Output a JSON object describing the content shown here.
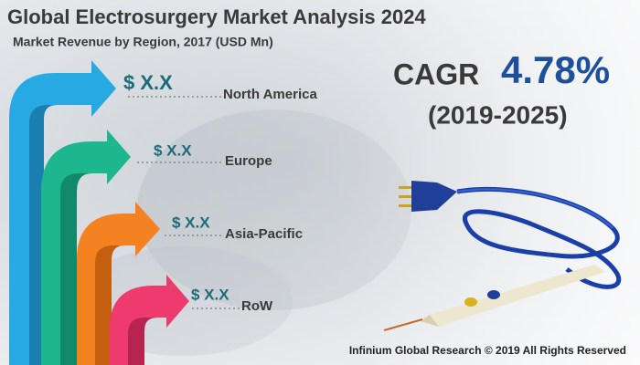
{
  "header": {
    "title": "Global Electrosurgery Market Analysis 2024",
    "subtitle": "Market Revenue by Region, 2017 (USD Mn)"
  },
  "regions": [
    {
      "label": "North America",
      "value": "$ X.X"
    },
    {
      "label": "Europe",
      "value": "$ X.X"
    },
    {
      "label": "Asia-Pacific",
      "value": "$ X.X"
    },
    {
      "label": "RoW",
      "value": "$ X.X"
    }
  ],
  "cagr": {
    "label": "CAGR",
    "value": "4.78%",
    "period": "(2019-2025)"
  },
  "footer": "Infinium Global Research © 2019 All Rights Reserved"
}
